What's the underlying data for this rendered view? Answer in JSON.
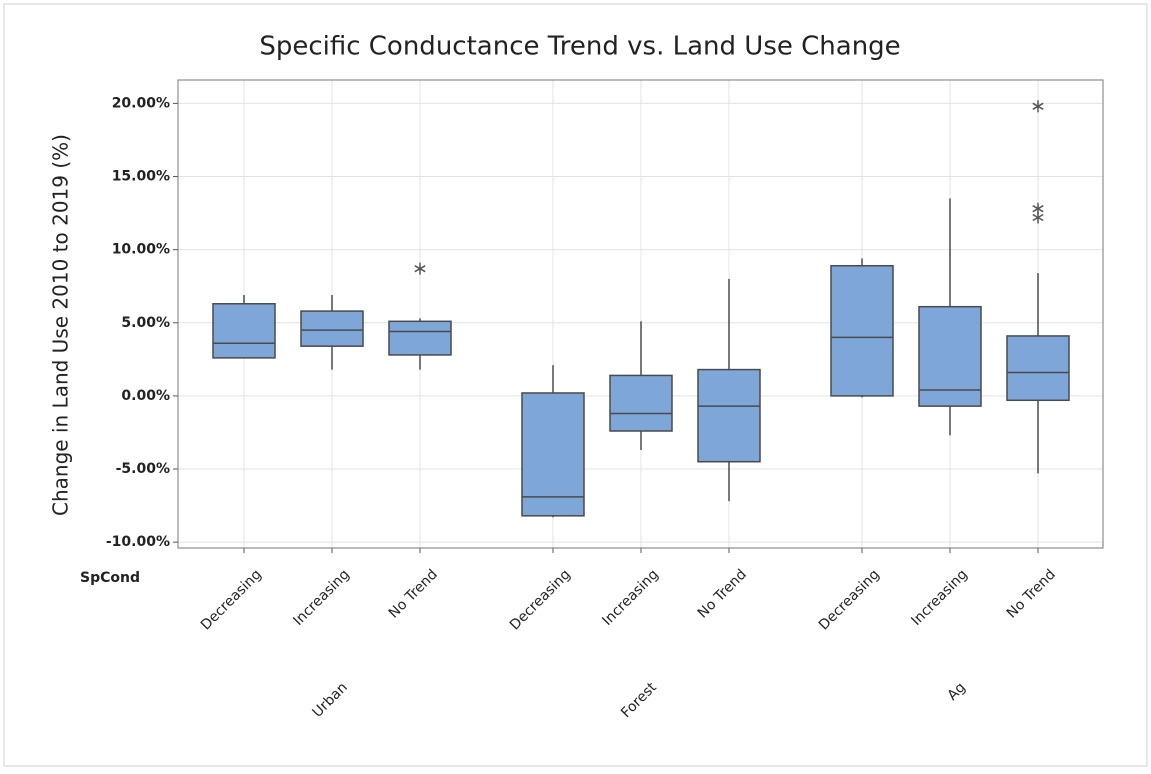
{
  "chart_data": {
    "type": "box",
    "title": "Specific Conductance Trend vs. Land Use Change",
    "y_label": "Change in Land Use 2010 to 2019 (%)",
    "x_row_label": "SpCond",
    "color": "#7ea6d8",
    "grid": true,
    "ylim": [
      -10.4,
      21.6
    ],
    "yticks": [
      {
        "value": -10,
        "label": "-10.00%"
      },
      {
        "value": -5,
        "label": "-5.00%"
      },
      {
        "value": 0,
        "label": "0.00%"
      },
      {
        "value": 5,
        "label": "5.00%"
      },
      {
        "value": 10,
        "label": "10.00%"
      },
      {
        "value": 15,
        "label": "15.00%"
      },
      {
        "value": 20,
        "label": "20.00%"
      }
    ],
    "groups": [
      {
        "name": "Urban",
        "boxes": [
          {
            "category": "Decreasing",
            "min": 2.6,
            "q1": 2.6,
            "median": 3.6,
            "q3": 6.3,
            "max": 6.9
          },
          {
            "category": "Increasing",
            "min": 1.8,
            "q1": 3.4,
            "median": 4.5,
            "q3": 5.8,
            "max": 6.9
          },
          {
            "category": "No Trend",
            "min": 1.8,
            "q1": 2.8,
            "median": 4.4,
            "q3": 5.1,
            "max": 5.3,
            "outliers": [
              8.7
            ]
          }
        ]
      },
      {
        "name": "Forest",
        "boxes": [
          {
            "category": "Decreasing",
            "min": -8.3,
            "q1": -8.2,
            "median": -6.9,
            "q3": 0.2,
            "max": 2.1
          },
          {
            "category": "Increasing",
            "min": -3.7,
            "q1": -2.4,
            "median": -1.2,
            "q3": 1.4,
            "max": 5.1
          },
          {
            "category": "No Trend",
            "min": -7.2,
            "q1": -4.5,
            "median": -0.7,
            "q3": 1.8,
            "max": 8.0
          }
        ]
      },
      {
        "name": "Ag",
        "boxes": [
          {
            "category": "Decreasing",
            "min": -0.1,
            "q1": 0,
            "median": 4.0,
            "q3": 8.9,
            "max": 9.4
          },
          {
            "category": "Increasing",
            "min": -2.7,
            "q1": -0.7,
            "median": 0.4,
            "q3": 6.1,
            "max": 13.5
          },
          {
            "category": "No Trend",
            "min": -5.3,
            "q1": -0.3,
            "median": 1.6,
            "q3": 4.1,
            "max": 8.4,
            "outliers": [
              19.8,
              12.8,
              12.2
            ]
          }
        ]
      }
    ]
  }
}
